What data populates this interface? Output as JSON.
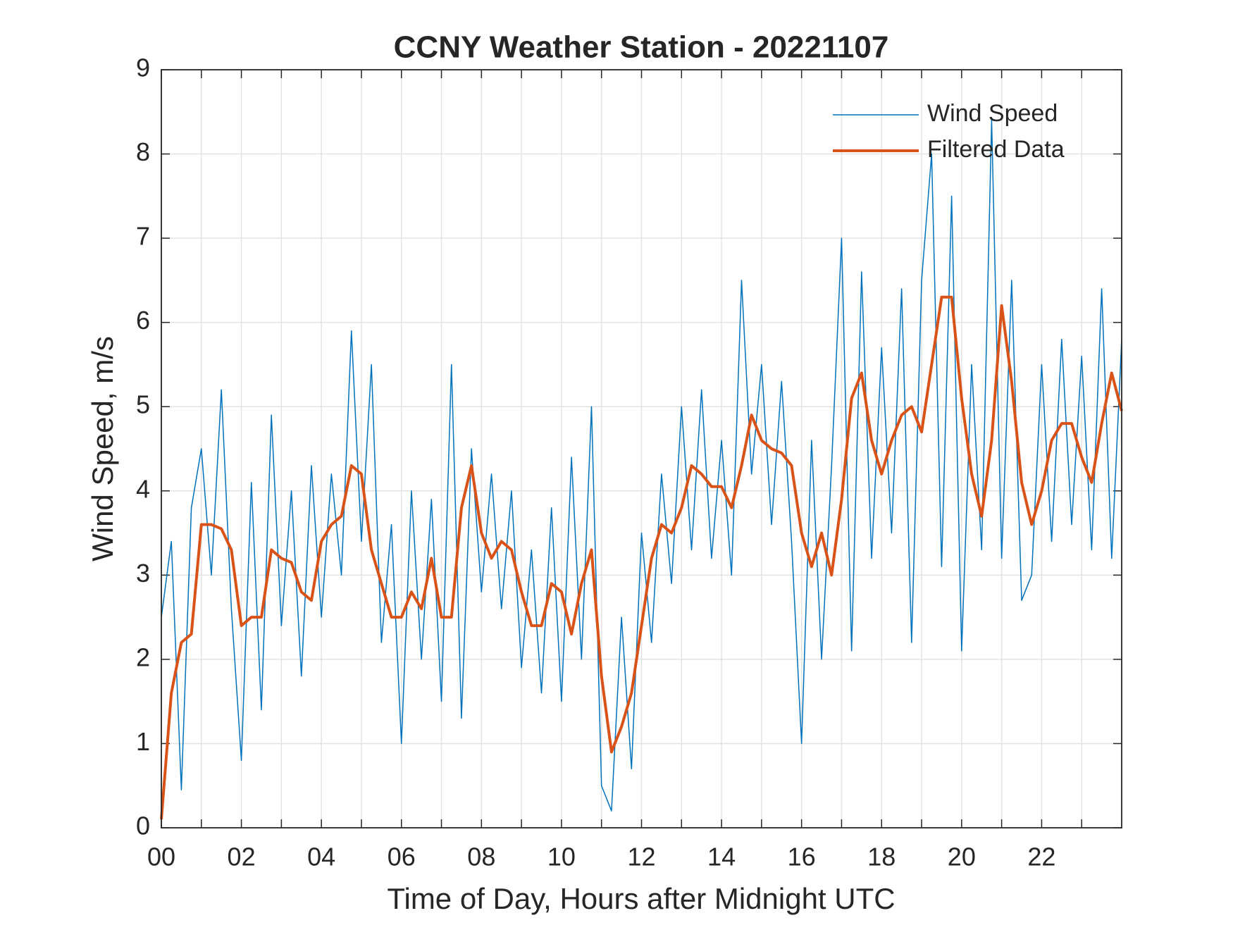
{
  "chart_data": {
    "type": "line",
    "title": "CCNY Weather Station - 20221107",
    "xlabel": "Time of Day, Hours after Midnight UTC",
    "ylabel": "Wind Speed, m/s",
    "xlim": [
      0,
      24
    ],
    "ylim": [
      0,
      9
    ],
    "xticks": [
      {
        "value": 0,
        "label": "00"
      },
      {
        "value": 2,
        "label": "02"
      },
      {
        "value": 4,
        "label": "04"
      },
      {
        "value": 6,
        "label": "06"
      },
      {
        "value": 8,
        "label": "08"
      },
      10,
      12,
      14,
      16,
      18,
      20,
      22
    ],
    "xminor_grid": [
      1,
      3,
      5,
      7,
      9,
      11,
      13,
      15,
      17,
      19,
      21,
      23
    ],
    "yticks": [
      0,
      1,
      2,
      3,
      4,
      5,
      6,
      7,
      8,
      9
    ],
    "grid": true,
    "legend": "northeast",
    "x": [
      0,
      0.25,
      0.5,
      0.75,
      1,
      1.25,
      1.5,
      1.75,
      2,
      2.25,
      2.5,
      2.75,
      3,
      3.25,
      3.5,
      3.75,
      4,
      4.25,
      4.5,
      4.75,
      5,
      5.25,
      5.5,
      5.75,
      6,
      6.25,
      6.5,
      6.75,
      7,
      7.25,
      7.5,
      7.75,
      8,
      8.25,
      8.5,
      8.75,
      9,
      9.25,
      9.5,
      9.75,
      10,
      10.25,
      10.5,
      10.75,
      11,
      11.25,
      11.5,
      11.75,
      12,
      12.25,
      12.5,
      12.75,
      13,
      13.25,
      13.5,
      13.75,
      14,
      14.25,
      14.5,
      14.75,
      15,
      15.25,
      15.5,
      15.75,
      16,
      16.25,
      16.5,
      16.75,
      17,
      17.25,
      17.5,
      17.75,
      18,
      18.25,
      18.5,
      18.75,
      19,
      19.25,
      19.5,
      19.75,
      20,
      20.25,
      20.5,
      20.75,
      21,
      21.25,
      21.5,
      21.75,
      22,
      22.25,
      22.5,
      22.75,
      23,
      23.25,
      23.5,
      23.75,
      24
    ],
    "series": [
      {
        "name": "Wind Speed",
        "color": "#0072BD",
        "line_width": 1.5,
        "values": [
          2.5,
          3.4,
          0.45,
          3.8,
          4.5,
          3.0,
          5.2,
          2.6,
          0.8,
          4.1,
          1.4,
          4.9,
          2.4,
          4.0,
          1.8,
          4.3,
          2.5,
          4.2,
          3.0,
          5.9,
          3.4,
          5.5,
          2.2,
          3.6,
          1.0,
          4.0,
          2.0,
          3.9,
          1.5,
          5.5,
          1.3,
          4.5,
          2.8,
          4.2,
          2.6,
          4.0,
          1.9,
          3.3,
          1.6,
          3.8,
          1.5,
          4.4,
          2.0,
          5.0,
          0.5,
          0.2,
          2.5,
          0.7,
          3.5,
          2.2,
          4.2,
          2.9,
          5.0,
          3.3,
          5.2,
          3.2,
          4.6,
          3.0,
          6.5,
          4.2,
          5.5,
          3.6,
          5.3,
          3.4,
          1.0,
          4.6,
          2.0,
          4.3,
          7.0,
          2.1,
          6.6,
          3.2,
          5.7,
          3.5,
          6.4,
          2.2,
          6.5,
          8.0,
          3.1,
          7.5,
          2.1,
          5.5,
          3.3,
          8.4,
          3.2,
          6.5,
          2.7,
          3.0,
          5.5,
          3.4,
          5.8,
          3.6,
          5.6,
          3.3,
          6.4,
          3.2,
          5.8
        ]
      },
      {
        "name": "Filtered Data",
        "color": "#D95319",
        "line_width": 4,
        "values": [
          0.1,
          1.6,
          2.2,
          2.3,
          3.6,
          3.6,
          3.55,
          3.3,
          2.4,
          2.5,
          2.5,
          3.3,
          3.2,
          3.15,
          2.8,
          2.7,
          3.4,
          3.6,
          3.7,
          4.3,
          4.2,
          3.3,
          2.9,
          2.5,
          2.5,
          2.8,
          2.6,
          3.2,
          2.5,
          2.5,
          3.8,
          4.3,
          3.5,
          3.2,
          3.4,
          3.3,
          2.8,
          2.4,
          2.4,
          2.9,
          2.8,
          2.3,
          2.9,
          3.3,
          1.8,
          0.9,
          1.2,
          1.6,
          2.4,
          3.2,
          3.6,
          3.5,
          3.8,
          4.3,
          4.2,
          4.05,
          4.05,
          3.8,
          4.3,
          4.9,
          4.6,
          4.5,
          4.45,
          4.3,
          3.5,
          3.1,
          3.5,
          3.0,
          3.9,
          5.1,
          5.4,
          4.6,
          4.2,
          4.6,
          4.9,
          5.0,
          4.7,
          5.5,
          6.3,
          6.3,
          5.1,
          4.2,
          3.7,
          4.6,
          6.2,
          5.3,
          4.1,
          3.6,
          4.0,
          4.6,
          4.8,
          4.8,
          4.4,
          4.1,
          4.8,
          5.4,
          4.95
        ]
      }
    ]
  }
}
